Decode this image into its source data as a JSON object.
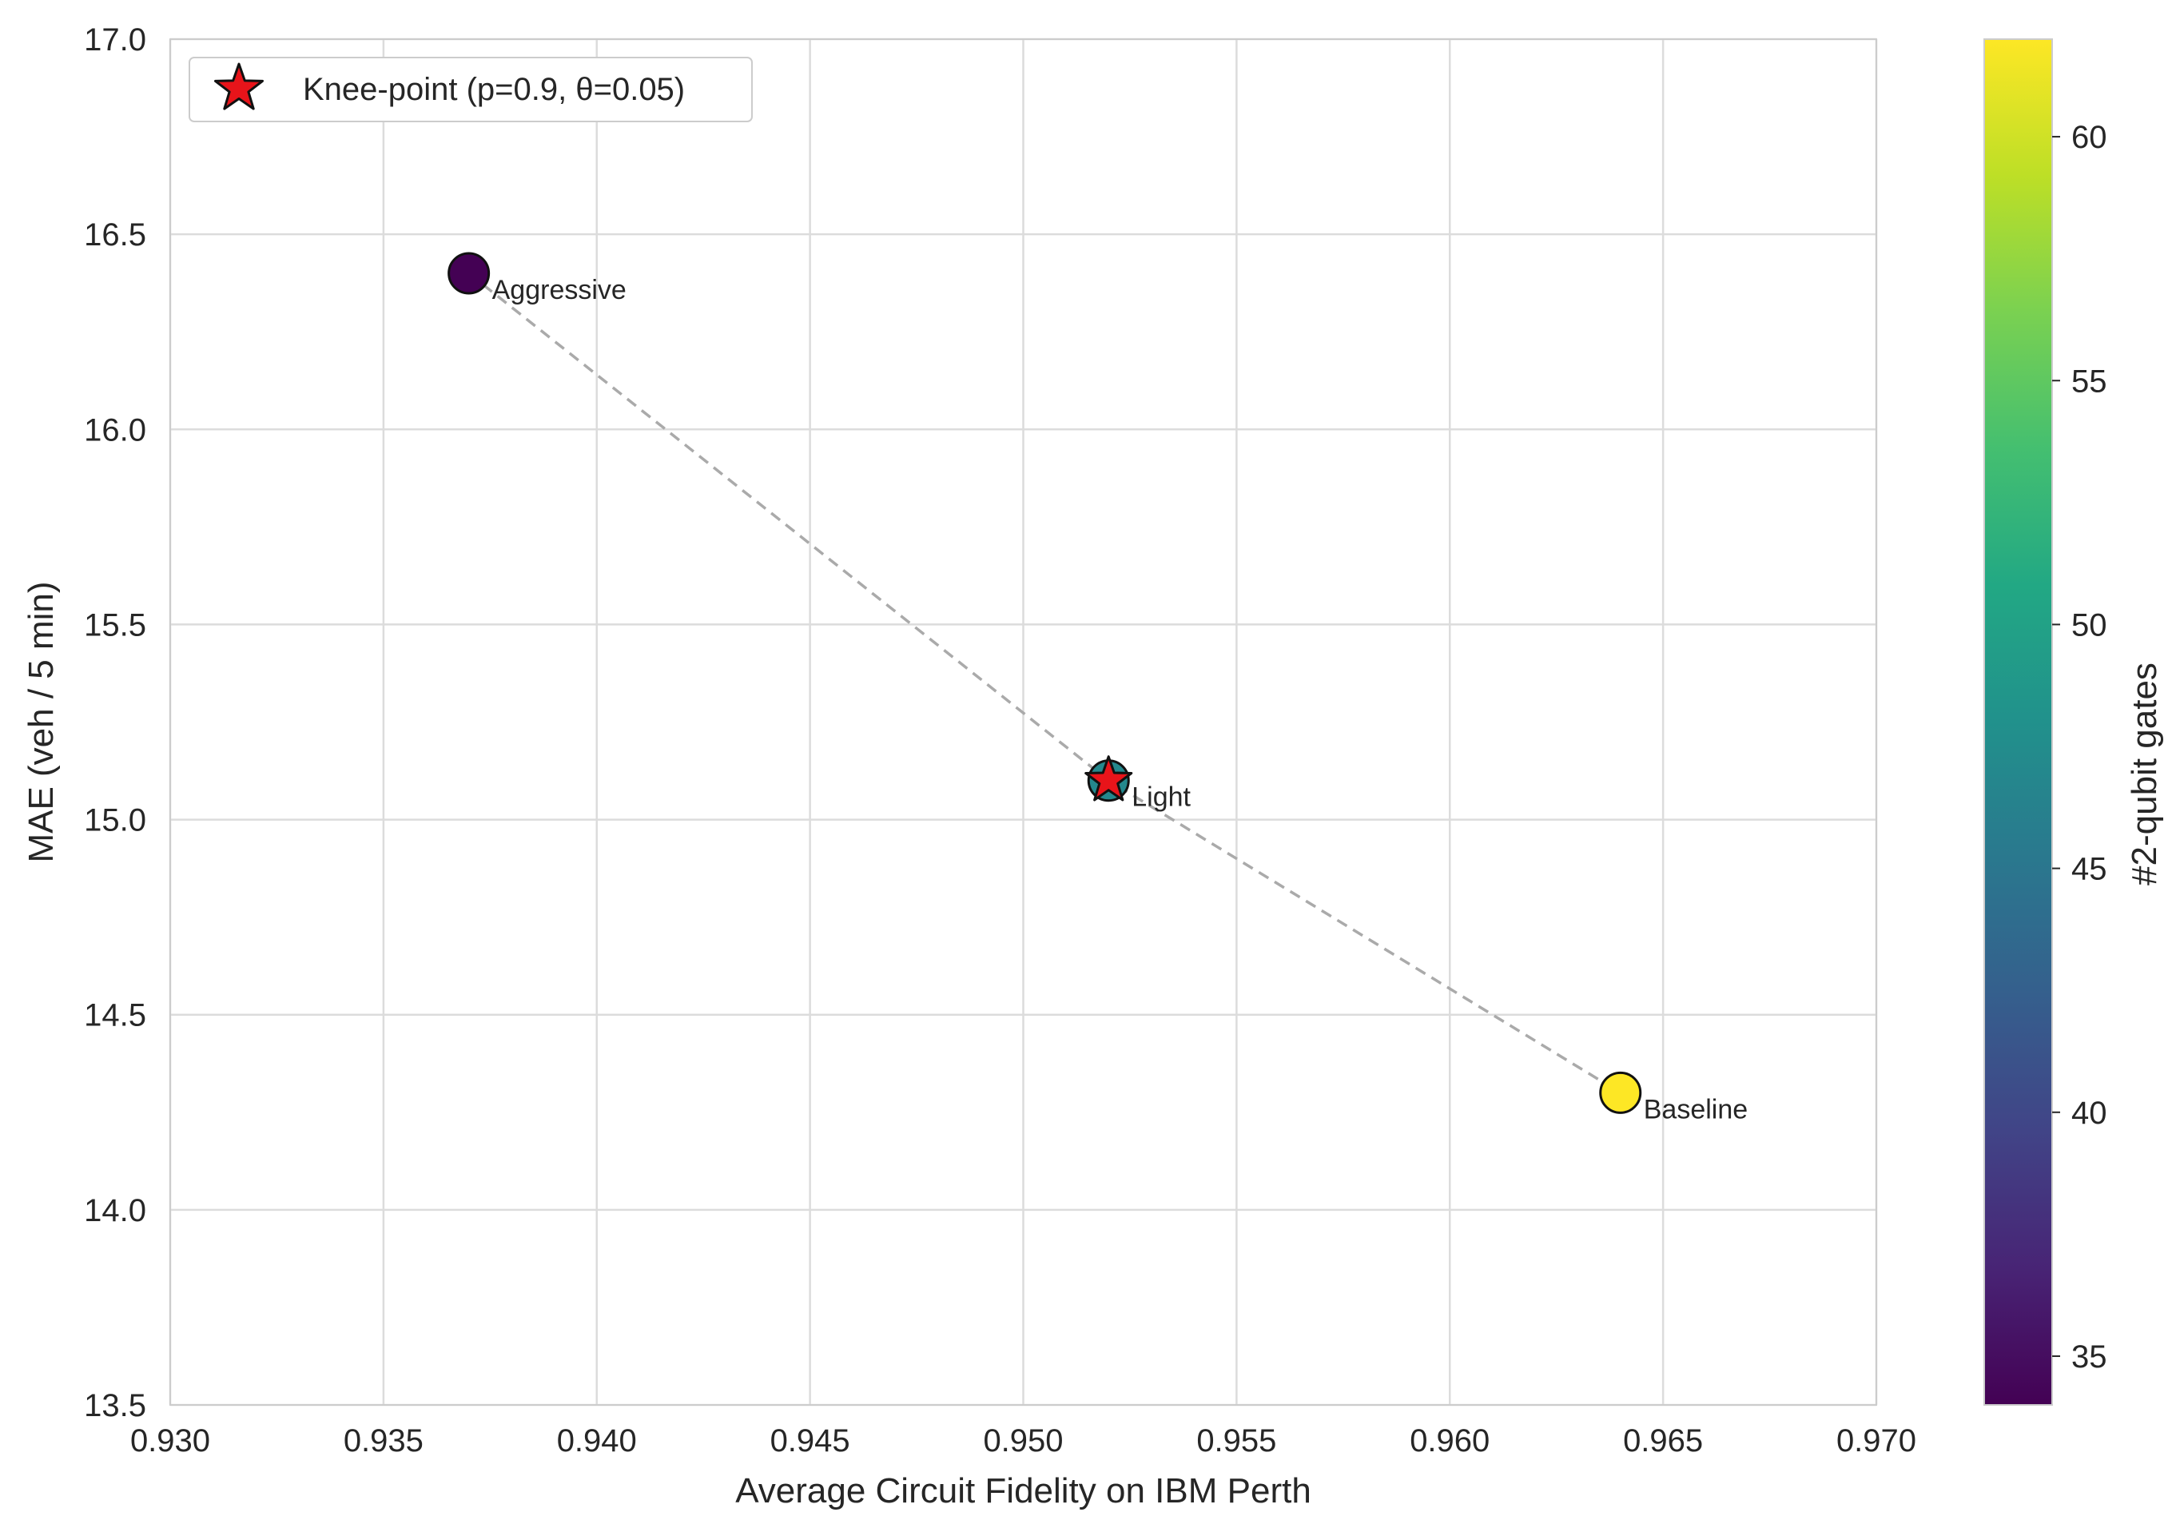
{
  "chart_data": {
    "type": "scatter",
    "xlabel": "Average Circuit Fidelity on IBM Perth",
    "ylabel": "MAE (veh / 5 min)",
    "xlim": [
      0.93,
      0.97
    ],
    "ylim": [
      13.5,
      17.0
    ],
    "xticks": [
      "0.930",
      "0.935",
      "0.940",
      "0.945",
      "0.950",
      "0.955",
      "0.960",
      "0.965",
      "0.970"
    ],
    "yticks": [
      "13.5",
      "14.0",
      "14.5",
      "15.0",
      "15.5",
      "16.0",
      "16.5",
      "17.0"
    ],
    "grid": true,
    "points": [
      {
        "label": "Aggressive",
        "x": 0.937,
        "y": 16.4,
        "two_qubit_gates": 34
      },
      {
        "label": "Light",
        "x": 0.952,
        "y": 15.1,
        "two_qubit_gates": 47
      },
      {
        "label": "Baseline",
        "x": 0.964,
        "y": 14.3,
        "two_qubit_gates": 62
      }
    ],
    "connecting_line": {
      "style": "dashed",
      "color": "#aaaaaa",
      "order": [
        "Aggressive",
        "Light",
        "Baseline"
      ]
    },
    "knee_point": {
      "x": 0.952,
      "y": 15.1,
      "marker": "star",
      "color": "#e8141a"
    },
    "legend": {
      "entries": [
        "Knee-point (p=0.9, θ=0.05)"
      ],
      "position": "top-left"
    },
    "colorbar": {
      "label": "#2-qubit gates",
      "colormap": "viridis",
      "range": [
        34,
        62
      ],
      "ticks": [
        "35",
        "40",
        "45",
        "50",
        "55",
        "60"
      ]
    }
  }
}
